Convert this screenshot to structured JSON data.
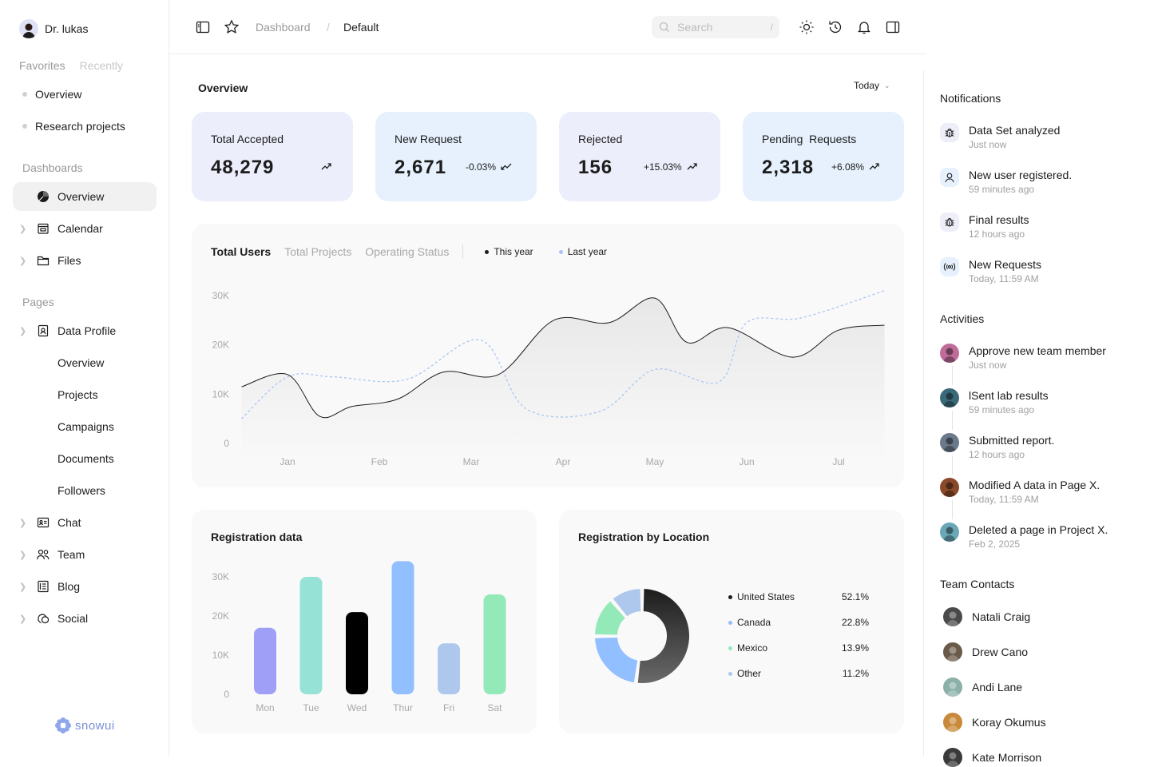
{
  "user": {
    "name": "Dr. lukas"
  },
  "sidebar": {
    "tabs": [
      "Favorites",
      "Recently"
    ],
    "favorites": [
      "Overview",
      "Research projects"
    ],
    "dashboards_label": "Dashboards",
    "dashboards": [
      {
        "label": "Overview",
        "icon": "pie-chart-icon",
        "active": true
      },
      {
        "label": "Calendar",
        "icon": "calendar-icon"
      },
      {
        "label": "Files",
        "icon": "folder-icon"
      }
    ],
    "pages_label": "Pages",
    "data_profile": "Data Profile",
    "sub": [
      "Overview",
      "Projects",
      "Campaigns",
      "Documents",
      "Followers"
    ],
    "more": [
      {
        "label": "Chat",
        "icon": "chat-icon"
      },
      {
        "label": "Team",
        "icon": "team-icon"
      },
      {
        "label": "Blog",
        "icon": "blog-icon"
      },
      {
        "label": "Social",
        "icon": "social-icon"
      }
    ],
    "logo": "snowui"
  },
  "topbar": {
    "crumb1": "Dashboard",
    "sep": "/",
    "crumb2": "Default",
    "search_placeholder": "Search",
    "search_key": "/"
  },
  "main": {
    "title": "Overview",
    "range": "Today"
  },
  "cards": [
    {
      "title": "Total Accepted",
      "value": "48,279",
      "change": "",
      "bg": "#eceefb"
    },
    {
      "title": "New Request",
      "value": "2,671",
      "change": "-0.03%",
      "bg": "#e6f1fd"
    },
    {
      "title": "Rejected",
      "value": "156",
      "change": "+15.03%",
      "bg": "#eceefb"
    },
    {
      "title": "Pending  Requests",
      "value": "2,318",
      "change": "+6.08%",
      "bg": "#e6f1fd"
    }
  ],
  "line_panel": {
    "tabs": [
      "Total Users",
      "Total Projects",
      "Operating Status"
    ],
    "legend": [
      "This year",
      "Last year"
    ]
  },
  "chart_data": [
    {
      "type": "line",
      "title": "Total Users",
      "categories": [
        "Jan",
        "Feb",
        "Mar",
        "Apr",
        "May",
        "Jun",
        "Jul"
      ],
      "yticks": [
        "30K",
        "20K",
        "10K",
        "0"
      ],
      "ylim": [
        0,
        30000
      ],
      "series": [
        {
          "name": "This year",
          "x": [
            -0.5,
            0,
            0.35,
            0.7,
            1.2,
            1.7,
            2.3,
            2.9,
            3.5,
            4,
            4.35,
            4.8,
            5.5,
            6,
            6.5
          ],
          "values": [
            11500,
            14000,
            5500,
            7500,
            9000,
            14500,
            14000,
            25000,
            24500,
            29500,
            20500,
            23500,
            17500,
            23000,
            24000
          ]
        },
        {
          "name": "Last year",
          "x": [
            -0.5,
            0,
            0.5,
            1.3,
            2.1,
            2.6,
            3.4,
            4,
            4.7,
            5,
            5.6,
            6.5
          ],
          "values": [
            5000,
            13500,
            13500,
            13000,
            21000,
            7000,
            6500,
            15000,
            12500,
            24500,
            25500,
            31000
          ]
        }
      ]
    },
    {
      "type": "bar",
      "title": "Registration data",
      "categories": [
        "Mon",
        "Tue",
        "Wed",
        "Thur",
        "Fri",
        "Sat"
      ],
      "values": [
        17000,
        30000,
        21000,
        34000,
        13000,
        25500
      ],
      "yticks": [
        "30K",
        "20K",
        "10K",
        "0"
      ],
      "ylim": [
        0,
        30000
      ],
      "colors": [
        "#9f9ff8",
        "#96e2d6",
        "#000000",
        "#92bfff",
        "#aec7ed",
        "#94e9b8"
      ]
    },
    {
      "type": "pie",
      "title": "Registration by Location",
      "labels": [
        "United States",
        "Canada",
        "Mexico",
        "Other"
      ],
      "values": [
        52.1,
        22.8,
        13.9,
        11.2
      ],
      "display": [
        "52.1%",
        "22.8%",
        "13.9%",
        "11.2%"
      ],
      "colors": [
        "#1c1c1c",
        "#92bfff",
        "#94e9b8",
        "#aec7ed"
      ]
    }
  ],
  "notifications": {
    "title": "Notifications",
    "items": [
      {
        "text": "Data Set analyzed",
        "time": "Just now",
        "icon": "bug-icon"
      },
      {
        "text": "New user registered.",
        "time": "59 minutes ago",
        "icon": "user-icon"
      },
      {
        "text": "Final results",
        "time": "12 hours ago",
        "icon": "bug-icon"
      },
      {
        "text": "New Requests",
        "time": "Today, 11:59 AM",
        "icon": "broadcast-icon"
      }
    ]
  },
  "activities": {
    "title": "Activities",
    "items": [
      {
        "text": "Approve new team member",
        "time": "Just now",
        "color": "#c06c9a"
      },
      {
        "text": "lSent lab results",
        "time": "59 minutes ago",
        "color": "#3a6a7a"
      },
      {
        "text": "Submitted report.",
        "time": "12 hours ago",
        "color": "#6a7a8a"
      },
      {
        "text": "Modified A data in Page X.",
        "time": "Today, 11:59 AM",
        "color": "#8a4a2a"
      },
      {
        "text": "Deleted a page in Project X.",
        "time": "Feb 2, 2025",
        "color": "#6aa8b8"
      }
    ]
  },
  "contacts": {
    "title": "Team Contacts",
    "items": [
      {
        "name": "Natali Craig",
        "color": "#4a4a4a"
      },
      {
        "name": "Drew Cano",
        "color": "#6a5a4a"
      },
      {
        "name": "Andi Lane",
        "color": "#8ab0a8"
      },
      {
        "name": "Koray Okumus",
        "color": "#c88a3a"
      },
      {
        "name": "Kate Morrison",
        "color": "#3a3a3a"
      }
    ]
  }
}
